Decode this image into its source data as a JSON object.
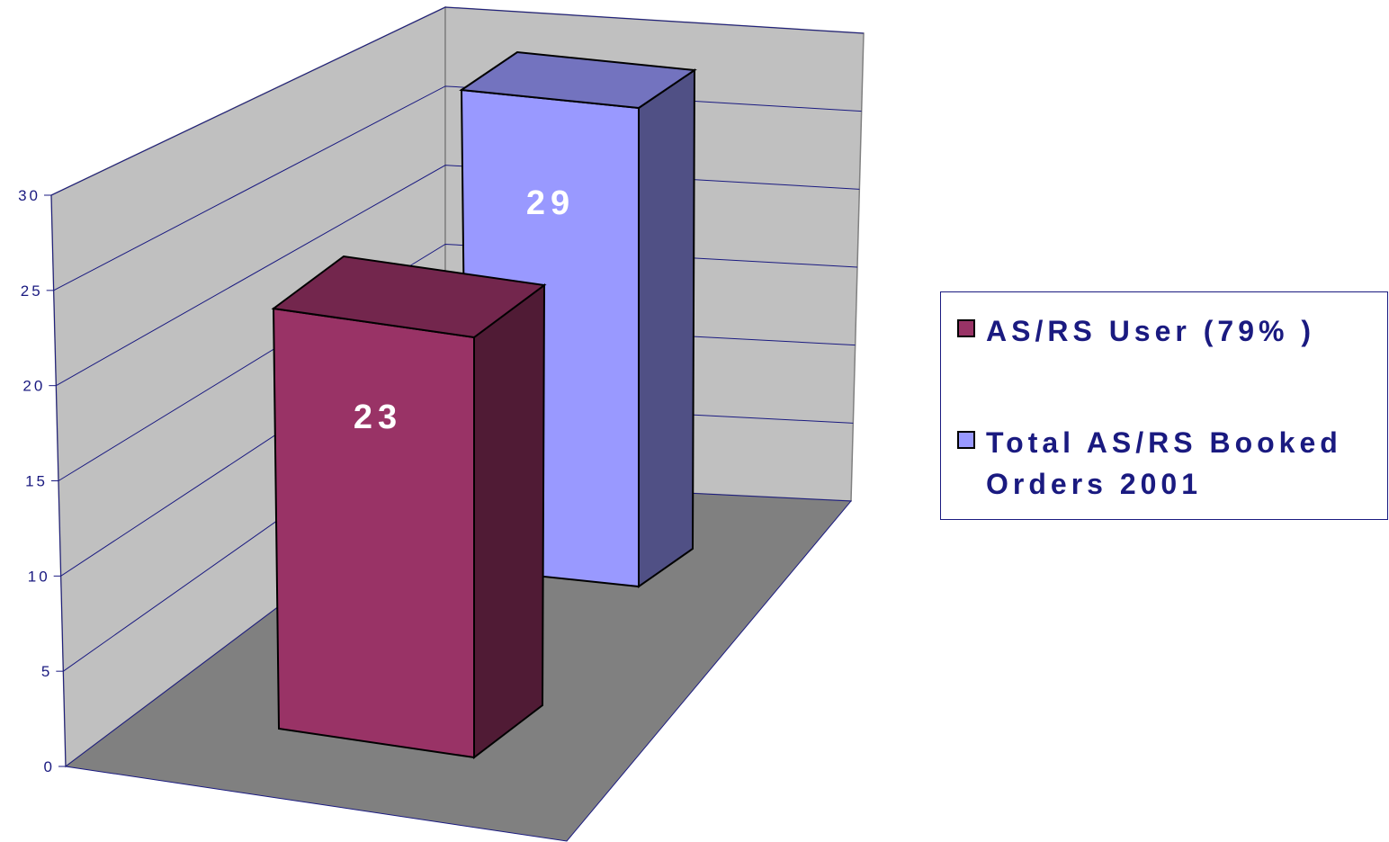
{
  "chart_data": {
    "type": "bar",
    "style": "3d-column",
    "categories": [
      ""
    ],
    "series": [
      {
        "name": "AS/RS User (79% )",
        "values": [
          23
        ],
        "color": "#993366"
      },
      {
        "name": "Total AS/RS Booked Orders 2001",
        "values": [
          29
        ],
        "color": "#9999ff"
      }
    ],
    "data_labels": [
      "23",
      "29"
    ],
    "y_ticks": [
      "0",
      "5",
      "10",
      "15",
      "20",
      "25",
      "30"
    ],
    "ylim": [
      0,
      30
    ],
    "grid": true,
    "legend_position": "right",
    "colors": {
      "wall": "#c0c0c0",
      "floor": "#808080",
      "gridline": "#1a1a80",
      "axis_text": "#1a1a80"
    }
  }
}
